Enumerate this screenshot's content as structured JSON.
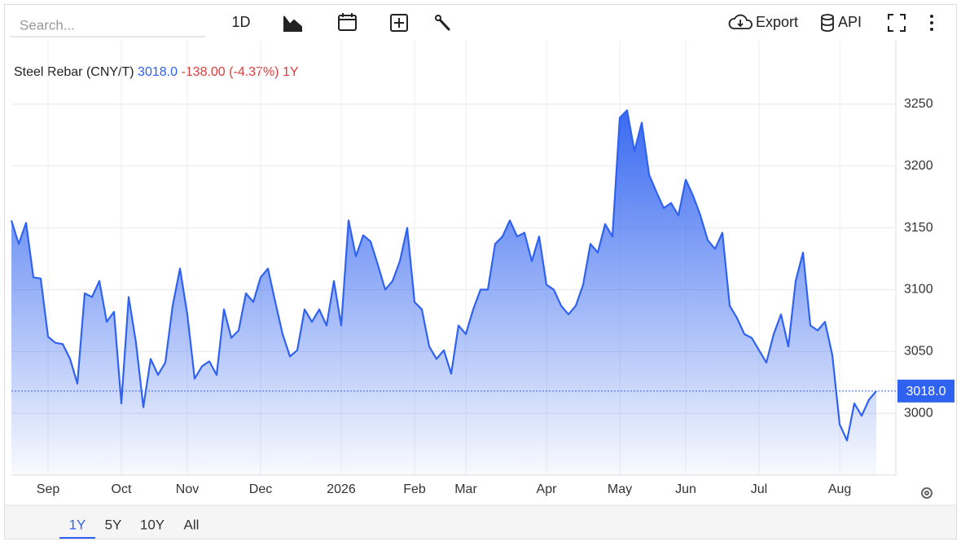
{
  "toolbar": {
    "search_placeholder": "Search...",
    "interval": "1D",
    "export": "Export",
    "api": "API"
  },
  "range_buttons": [
    "1Y",
    "5Y",
    "10Y",
    "All"
  ],
  "chart_data": {
    "type": "line",
    "title": "Steel Rebar (CNY/T)",
    "price": "3018.0",
    "change": "-138.00",
    "change_pct": "(-4.37%)",
    "period": "1Y",
    "color": "#2f62f0",
    "grid": true,
    "categories": [
      null,
      null,
      null,
      null,
      null,
      "Sep",
      null,
      null,
      null,
      null,
      null,
      null,
      null,
      null,
      null,
      "Oct",
      null,
      null,
      null,
      null,
      null,
      null,
      null,
      null,
      "Nov",
      null,
      null,
      null,
      null,
      null,
      null,
      null,
      null,
      null,
      "Dec",
      null,
      null,
      null,
      null,
      null,
      null,
      null,
      null,
      null,
      null,
      "2026",
      null,
      null,
      null,
      null,
      null,
      null,
      null,
      null,
      null,
      "Feb",
      null,
      null,
      null,
      null,
      null,
      null,
      "Mar",
      null,
      null,
      null,
      null,
      null,
      null,
      null,
      null,
      null,
      null,
      "Apr",
      null,
      null,
      null,
      null,
      null,
      null,
      null,
      null,
      null,
      "May",
      null,
      null,
      null,
      null,
      null,
      null,
      null,
      null,
      "Jun",
      null,
      null,
      null,
      null,
      null,
      null,
      null,
      null,
      null,
      "Jul",
      null,
      null,
      null,
      null,
      null,
      null,
      null,
      null,
      null,
      null,
      "Aug",
      null,
      null,
      null,
      null,
      null
    ],
    "values": [
      3156,
      3137,
      3154,
      3110,
      3109,
      3062,
      3057,
      3056,
      3044,
      3024,
      3097,
      3094,
      3107,
      3074,
      3082,
      3008,
      3094,
      3057,
      3005,
      3044,
      3031,
      3041,
      3087,
      3117,
      3080,
      3028,
      3038,
      3042,
      3031,
      3084,
      3061,
      3067,
      3097,
      3090,
      3110,
      3117,
      3090,
      3064,
      3046,
      3051,
      3084,
      3074,
      3084,
      3071,
      3107,
      3071,
      3156,
      3127,
      3144,
      3139,
      3120,
      3100,
      3107,
      3123,
      3150,
      3090,
      3084,
      3054,
      3044,
      3051,
      3032,
      3071,
      3064,
      3084,
      3100,
      3100,
      3137,
      3143,
      3156,
      3143,
      3146,
      3123,
      3143,
      3104,
      3100,
      3087,
      3080,
      3087,
      3104,
      3137,
      3130,
      3153,
      3143,
      3239,
      3245,
      3212,
      3235,
      3193,
      3179,
      3166,
      3170,
      3160,
      3189,
      3176,
      3160,
      3140,
      3133,
      3146,
      3087,
      3077,
      3064,
      3061,
      3051,
      3041,
      3064,
      3080,
      3054,
      3107,
      3130,
      3071,
      3067,
      3074,
      3047,
      2991,
      2978,
      3008,
      2998,
      3011,
      3018
    ],
    "ylim": [
      2950,
      3300
    ],
    "yticks": [
      3000,
      3050,
      3100,
      3150,
      3200,
      3250
    ]
  }
}
